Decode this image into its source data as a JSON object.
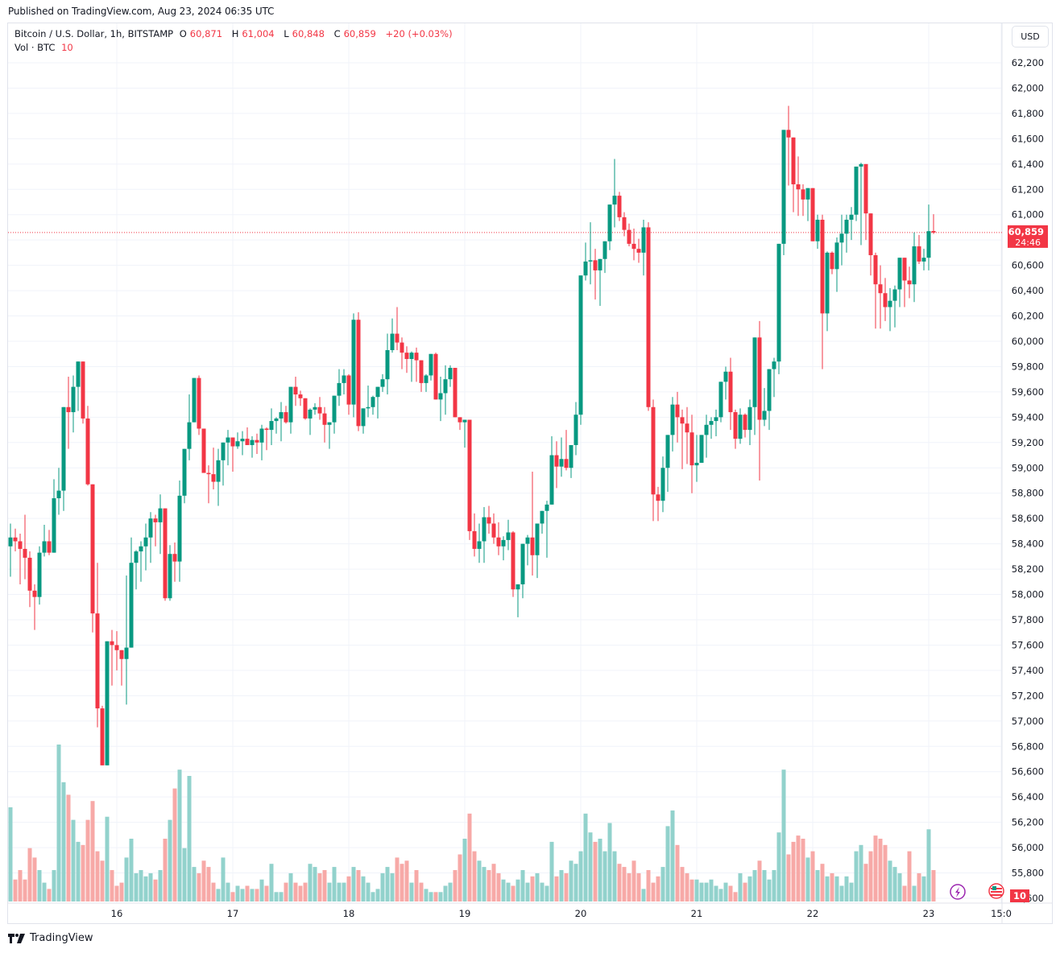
{
  "header": {
    "published": "Published on TradingView.com, Aug 23, 2024 06:35 UTC"
  },
  "legend": {
    "symbol": "Bitcoin / U.S. Dollar, 1h, BITSTAMP",
    "o_label": "O",
    "o_value": "60,871",
    "h_label": "H",
    "h_value": "61,004",
    "l_label": "L",
    "l_value": "60,848",
    "c_label": "C",
    "c_value": "60,859",
    "change": "+20 (+0.03%)",
    "vol_label": "Vol · BTC",
    "vol_value": "10"
  },
  "currency_button": "USD",
  "price_tag": {
    "price": "60,859",
    "countdown": "24:46"
  },
  "volume_tag": "10",
  "footer": {
    "brand": "TradingView"
  },
  "colors": {
    "up": "#089981",
    "down": "#f23645",
    "vol_up": "#92d2cc",
    "vol_down": "#f7a9a7",
    "grid": "#f0f3fa",
    "event_lightning": "#9c27b0",
    "event_flag": "#f23645"
  },
  "chart_data": {
    "type": "candlestick",
    "title": "Bitcoin / U.S. Dollar, 1h, BITSTAMP",
    "xlabel": "",
    "ylabel": "USD",
    "ylim": [
      55600,
      62300
    ],
    "y_ticks": [
      "62,200",
      "62,000",
      "61,800",
      "61,600",
      "61,400",
      "61,200",
      "61,000",
      "60,800",
      "60,600",
      "60,400",
      "60,200",
      "60,000",
      "59,800",
      "59,600",
      "59,400",
      "59,200",
      "59,000",
      "58,800",
      "58,600",
      "58,400",
      "58,200",
      "58,000",
      "57,800",
      "57,600",
      "57,400",
      "57,200",
      "57,000",
      "56,800",
      "56,600",
      "56,400",
      "56,200",
      "56,000",
      "55,800",
      "55,600"
    ],
    "x_ticks": [
      {
        "label": "16",
        "index": 22
      },
      {
        "label": "17",
        "index": 46
      },
      {
        "label": "18",
        "index": 70
      },
      {
        "label": "19",
        "index": 94
      },
      {
        "label": "20",
        "index": 118
      },
      {
        "label": "21",
        "index": 142
      },
      {
        "label": "22",
        "index": 166
      },
      {
        "label": "23",
        "index": 190
      },
      {
        "label": "15:0",
        "index": 205
      }
    ],
    "last_price": 60859,
    "grid": true,
    "candles_ohlcv": [
      [
        58380,
        58560,
        58140,
        58450,
        30
      ],
      [
        58450,
        58520,
        58340,
        58420,
        7
      ],
      [
        58420,
        58480,
        58080,
        58360,
        10
      ],
      [
        58360,
        58630,
        58120,
        58290,
        7
      ],
      [
        58290,
        58340,
        57900,
        58030,
        17
      ],
      [
        58030,
        58080,
        57720,
        57980,
        14
      ],
      [
        57980,
        58380,
        57920,
        58330,
        10
      ],
      [
        58330,
        58550,
        58300,
        58420,
        6
      ],
      [
        58420,
        58510,
        58310,
        58330,
        4
      ],
      [
        58330,
        58910,
        58330,
        58760,
        10
      ],
      [
        58760,
        59000,
        58630,
        58820,
        50
      ],
      [
        58820,
        59460,
        58660,
        59480,
        38
      ],
      [
        59480,
        59720,
        59150,
        59440,
        34
      ],
      [
        59440,
        59730,
        59280,
        59640,
        26
      ],
      [
        59640,
        59840,
        59450,
        59840,
        19
      ],
      [
        59840,
        59780,
        59350,
        59390,
        18
      ],
      [
        59390,
        59490,
        58860,
        58870,
        26
      ],
      [
        58870,
        58350,
        57700,
        57850,
        32
      ],
      [
        57850,
        58250,
        56950,
        57100,
        16
      ],
      [
        57100,
        57120,
        56700,
        56650,
        13
      ],
      [
        56650,
        57630,
        56650,
        57630,
        27
      ],
      [
        57630,
        57720,
        57280,
        57600,
        10
      ],
      [
        57600,
        57710,
        57400,
        57560,
        5
      ],
      [
        57560,
        57560,
        57280,
        57490,
        6
      ],
      [
        57490,
        58150,
        57130,
        57580,
        14
      ],
      [
        57580,
        58450,
        57580,
        58250,
        20
      ],
      [
        58250,
        58350,
        58040,
        58340,
        9
      ],
      [
        58340,
        58420,
        58100,
        58380,
        10
      ],
      [
        58380,
        58560,
        58190,
        58450,
        8
      ],
      [
        58450,
        58650,
        58250,
        58600,
        9
      ],
      [
        58600,
        58630,
        58380,
        58570,
        7
      ],
      [
        58570,
        58790,
        58320,
        58680,
        10
      ],
      [
        58680,
        58680,
        57950,
        57970,
        20
      ],
      [
        57970,
        58390,
        57950,
        58320,
        26
      ],
      [
        58320,
        58410,
        58100,
        58260,
        36
      ],
      [
        58260,
        58900,
        58100,
        58780,
        42
      ],
      [
        58780,
        59150,
        58720,
        59150,
        17
      ],
      [
        59150,
        59580,
        59060,
        59360,
        40
      ],
      [
        59360,
        59700,
        59370,
        59710,
        11
      ],
      [
        59710,
        59730,
        59260,
        59310,
        9
      ],
      [
        59310,
        59280,
        58960,
        58960,
        13
      ],
      [
        58960,
        59020,
        58720,
        58950,
        11
      ],
      [
        58950,
        59160,
        58830,
        58890,
        6
      ],
      [
        58890,
        59150,
        58700,
        59060,
        4
      ],
      [
        59060,
        59150,
        58860,
        59200,
        14
      ],
      [
        59200,
        59300,
        59020,
        59240,
        6
      ],
      [
        59240,
        59230,
        58970,
        59170,
        3
      ],
      [
        59170,
        59280,
        59150,
        59210,
        5
      ],
      [
        59210,
        59290,
        59100,
        59230,
        4
      ],
      [
        59230,
        59320,
        59180,
        59180,
        5
      ],
      [
        59180,
        59250,
        59080,
        59220,
        4
      ],
      [
        59220,
        59270,
        59110,
        59200,
        4
      ],
      [
        59200,
        59340,
        59060,
        59310,
        7
      ],
      [
        59310,
        59320,
        59140,
        59300,
        5
      ],
      [
        59300,
        59470,
        59180,
        59370,
        12
      ],
      [
        59370,
        59400,
        59270,
        59390,
        3
      ],
      [
        59390,
        59520,
        59210,
        59440,
        3
      ],
      [
        59440,
        59490,
        59350,
        59360,
        6
      ],
      [
        59360,
        59640,
        59270,
        59640,
        9
      ],
      [
        59640,
        59720,
        59490,
        59580,
        6
      ],
      [
        59580,
        59610,
        59490,
        59550,
        5
      ],
      [
        59550,
        59510,
        59380,
        59390,
        6
      ],
      [
        59390,
        59470,
        59260,
        59460,
        12
      ],
      [
        59460,
        59510,
        59420,
        59480,
        11
      ],
      [
        59480,
        59560,
        59380,
        59430,
        9
      ],
      [
        59430,
        59480,
        59200,
        59340,
        10
      ],
      [
        59340,
        59360,
        59150,
        59360,
        6
      ],
      [
        59360,
        59510,
        59270,
        59570,
        11
      ],
      [
        59570,
        59780,
        59490,
        59670,
        6
      ],
      [
        59670,
        59780,
        59580,
        59730,
        6
      ],
      [
        59730,
        59740,
        59420,
        59500,
        8
      ],
      [
        59500,
        60220,
        59400,
        60170,
        11
      ],
      [
        60170,
        60230,
        59290,
        59330,
        10
      ],
      [
        59330,
        59450,
        59270,
        59470,
        8
      ],
      [
        59470,
        59650,
        59400,
        59480,
        6
      ],
      [
        59480,
        59570,
        59420,
        59560,
        3
      ],
      [
        59560,
        59600,
        59390,
        59640,
        4
      ],
      [
        59640,
        59740,
        59600,
        59700,
        9
      ],
      [
        59700,
        60060,
        59580,
        59930,
        11
      ],
      [
        59930,
        60180,
        59910,
        60060,
        9
      ],
      [
        60060,
        60270,
        59930,
        59990,
        14
      ],
      [
        59990,
        60030,
        59780,
        59910,
        12
      ],
      [
        59910,
        59960,
        59750,
        59860,
        13
      ],
      [
        59860,
        59920,
        59680,
        59910,
        6
      ],
      [
        59910,
        59950,
        59680,
        59850,
        10
      ],
      [
        59850,
        59720,
        59600,
        59670,
        6
      ],
      [
        59670,
        59740,
        59600,
        59730,
        4
      ],
      [
        59730,
        59850,
        59690,
        59900,
        3
      ],
      [
        59900,
        59910,
        59700,
        59540,
        3
      ],
      [
        59540,
        59720,
        59370,
        59590,
        3
      ],
      [
        59590,
        59810,
        59420,
        59700,
        5
      ],
      [
        59700,
        59810,
        59640,
        59790,
        6
      ],
      [
        59790,
        59790,
        59510,
        59400,
        10
      ],
      [
        59400,
        59220,
        59300,
        59360,
        15
      ],
      [
        59360,
        59330,
        59160,
        59380,
        20
      ],
      [
        59380,
        59180,
        58430,
        58500,
        28
      ],
      [
        58500,
        58640,
        58300,
        58360,
        16
      ],
      [
        58360,
        58560,
        58250,
        58420,
        13
      ],
      [
        58420,
        58690,
        58250,
        58610,
        11
      ],
      [
        58610,
        58700,
        58480,
        58560,
        10
      ],
      [
        58560,
        58640,
        58400,
        58450,
        12
      ],
      [
        58450,
        58570,
        58310,
        58380,
        9
      ],
      [
        58380,
        58460,
        58270,
        58430,
        7
      ],
      [
        58430,
        58590,
        58350,
        58490,
        6
      ],
      [
        58490,
        58500,
        57980,
        58040,
        5
      ],
      [
        58040,
        58030,
        57820,
        58080,
        7
      ],
      [
        58080,
        58170,
        57970,
        58400,
        10
      ],
      [
        58400,
        58470,
        58230,
        58450,
        6
      ],
      [
        58450,
        58970,
        58150,
        58310,
        8
      ],
      [
        58310,
        58330,
        58130,
        58560,
        9
      ],
      [
        58560,
        58560,
        58480,
        58660,
        6
      ],
      [
        58660,
        58740,
        58290,
        58710,
        5
      ],
      [
        58710,
        59250,
        58850,
        59100,
        19
      ],
      [
        59100,
        59210,
        58840,
        59010,
        8
      ],
      [
        59010,
        59240,
        58930,
        59070,
        10
      ],
      [
        59070,
        59300,
        58980,
        59000,
        9
      ],
      [
        59000,
        59180,
        58920,
        59180,
        13
      ],
      [
        59180,
        59520,
        59100,
        59420,
        12
      ],
      [
        59420,
        60380,
        59340,
        60520,
        16
      ],
      [
        60520,
        60780,
        60480,
        60630,
        28
      ],
      [
        60630,
        60940,
        60450,
        60640,
        22
      ],
      [
        60640,
        60730,
        60330,
        60560,
        19
      ],
      [
        60560,
        60610,
        60280,
        60650,
        20
      ],
      [
        60650,
        60790,
        60540,
        60790,
        16
      ],
      [
        60790,
        61000,
        60720,
        61080,
        25
      ],
      [
        61080,
        61440,
        60900,
        61150,
        16
      ],
      [
        61150,
        61180,
        60950,
        60980,
        12
      ],
      [
        60980,
        61020,
        60830,
        60880,
        11
      ],
      [
        60880,
        60930,
        60750,
        60770,
        9
      ],
      [
        60770,
        60890,
        60640,
        60730,
        13
      ],
      [
        60730,
        60810,
        60620,
        60700,
        9
      ],
      [
        60700,
        60960,
        60520,
        60900,
        4
      ],
      [
        60900,
        60940,
        59450,
        59480,
        10
      ],
      [
        59480,
        59540,
        58580,
        58790,
        6
      ],
      [
        58790,
        58850,
        58580,
        58740,
        8
      ],
      [
        58740,
        59090,
        58650,
        59000,
        11
      ],
      [
        59000,
        59220,
        58810,
        59260,
        24
      ],
      [
        59260,
        59560,
        59130,
        59500,
        29
      ],
      [
        59500,
        59600,
        59200,
        59400,
        18
      ],
      [
        59400,
        59460,
        58990,
        59350,
        11
      ],
      [
        59350,
        59480,
        59030,
        59280,
        9
      ],
      [
        59280,
        59420,
        58800,
        59020,
        7
      ],
      [
        59020,
        59260,
        58890,
        59040,
        7
      ],
      [
        59040,
        59200,
        59100,
        59260,
        6
      ],
      [
        59260,
        59420,
        59080,
        59340,
        6
      ],
      [
        59340,
        59400,
        59230,
        59370,
        7
      ],
      [
        59370,
        59460,
        59250,
        59400,
        5
      ],
      [
        59400,
        59600,
        59360,
        59680,
        4
      ],
      [
        59680,
        59800,
        59540,
        59760,
        6
      ],
      [
        59760,
        59870,
        59300,
        59440,
        5
      ],
      [
        59440,
        59460,
        59150,
        59230,
        3
      ],
      [
        59230,
        59470,
        59190,
        59420,
        9
      ],
      [
        59420,
        59430,
        59240,
        59300,
        6
      ],
      [
        59300,
        59540,
        59180,
        59480,
        8
      ],
      [
        59480,
        59900,
        59260,
        60030,
        10
      ],
      [
        60030,
        60160,
        58900,
        59380,
        13
      ],
      [
        59380,
        59630,
        59330,
        59450,
        10
      ],
      [
        59450,
        59750,
        59300,
        59780,
        7
      ],
      [
        59780,
        59870,
        59560,
        59840,
        10
      ],
      [
        59840,
        60130,
        59740,
        60770,
        22
      ],
      [
        60770,
        61630,
        60680,
        61670,
        42
      ],
      [
        61670,
        61860,
        61230,
        61610,
        15
      ],
      [
        61610,
        61540,
        61020,
        61240,
        19
      ],
      [
        61240,
        61460,
        60990,
        61200,
        21
      ],
      [
        61200,
        61240,
        60990,
        61120,
        20
      ],
      [
        61120,
        61100,
        60950,
        61210,
        14
      ],
      [
        61210,
        61210,
        60790,
        60790,
        16
      ],
      [
        60790,
        61000,
        60730,
        60960,
        10
      ],
      [
        60960,
        61000,
        59780,
        60220,
        12
      ],
      [
        60220,
        60710,
        60080,
        60700,
        8
      ],
      [
        60700,
        60710,
        60530,
        60570,
        9
      ],
      [
        60570,
        60820,
        60390,
        60780,
        8
      ],
      [
        60780,
        61000,
        60600,
        60850,
        5
      ],
      [
        60850,
        61000,
        60700,
        60960,
        8
      ],
      [
        60960,
        61060,
        60800,
        61000,
        6
      ],
      [
        61000,
        61170,
        60950,
        61380,
        16
      ],
      [
        61380,
        61410,
        60760,
        61400,
        18
      ],
      [
        61400,
        61400,
        60800,
        61010,
        12
      ],
      [
        61010,
        61010,
        60520,
        60680,
        16
      ],
      [
        60680,
        60700,
        60100,
        60450,
        21
      ],
      [
        60450,
        60600,
        60100,
        60380,
        20
      ],
      [
        60380,
        60500,
        60160,
        60270,
        18
      ],
      [
        60270,
        60420,
        60080,
        60320,
        13
      ],
      [
        60320,
        60440,
        60110,
        60410,
        11
      ],
      [
        60410,
        60640,
        60270,
        60660,
        9
      ],
      [
        60660,
        60660,
        60270,
        60480,
        5
      ],
      [
        60480,
        60590,
        60340,
        60450,
        16
      ],
      [
        60450,
        60860,
        60310,
        60750,
        5
      ],
      [
        60750,
        60840,
        60610,
        60630,
        9
      ],
      [
        60630,
        60730,
        60560,
        60660,
        8
      ],
      [
        60660,
        61080,
        60560,
        60870,
        23
      ],
      [
        60871,
        61004,
        60848,
        60859,
        10
      ]
    ]
  }
}
